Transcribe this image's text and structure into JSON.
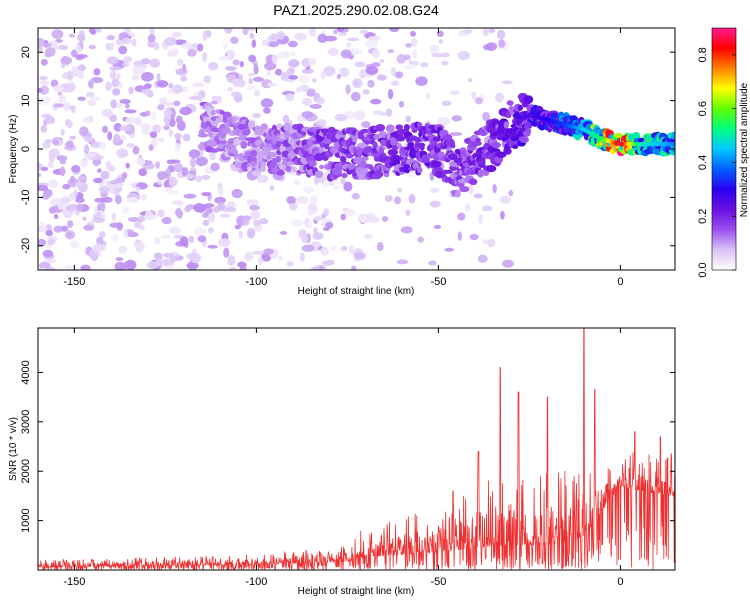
{
  "title": "PAZ1.2025.290.02.08.G24",
  "chart_data": [
    {
      "type": "heatmap",
      "name": "spectrogram",
      "xlabel": "Height of straight line (km)",
      "ylabel": "Frequency (Hz)",
      "xlim": [
        -160,
        15
      ],
      "ylim": [
        -25,
        25
      ],
      "xticks": [
        -150,
        -100,
        -50,
        0
      ],
      "yticks": [
        -20,
        -10,
        0,
        10,
        20
      ],
      "colorbar": {
        "label": "Normalized spectral amplitude",
        "range": [
          0,
          0.9
        ],
        "ticks": [
          "0.0",
          "0.2",
          "0.4",
          "0.6",
          "0.8"
        ],
        "colormap": [
          "#ffffff",
          "#d9c2f5",
          "#9a4ff0",
          "#6a10e0",
          "#2a00f0",
          "#0060ff",
          "#00c8ff",
          "#00ff80",
          "#60ff00",
          "#ffff00",
          "#ff8000",
          "#ff0000",
          "#ff1a8c"
        ]
      },
      "noise_region": {
        "x_range": [
          -160,
          -30
        ],
        "y_range": [
          -25,
          25
        ],
        "amplitude": 0.08
      },
      "signal_trace": [
        {
          "x": -115,
          "freq": 5,
          "amp": 0.12
        },
        {
          "x": -100,
          "freq": 0,
          "amp": 0.12
        },
        {
          "x": -90,
          "freq": 0,
          "amp": 0.15
        },
        {
          "x": -80,
          "freq": -1,
          "amp": 0.18
        },
        {
          "x": -70,
          "freq": -1,
          "amp": 0.17
        },
        {
          "x": -60,
          "freq": 0,
          "amp": 0.2
        },
        {
          "x": -50,
          "freq": 0,
          "amp": 0.2
        },
        {
          "x": -45,
          "freq": -5,
          "amp": 0.18
        },
        {
          "x": -35,
          "freq": 1,
          "amp": 0.2
        },
        {
          "x": -30,
          "freq": 5,
          "amp": 0.22
        },
        {
          "x": -25,
          "freq": 7,
          "amp": 0.25
        },
        {
          "x": -20,
          "freq": 6,
          "amp": 0.3
        },
        {
          "x": -15,
          "freq": 5,
          "amp": 0.35
        },
        {
          "x": -10,
          "freq": 4,
          "amp": 0.45
        },
        {
          "x": -5,
          "freq": 2,
          "amp": 0.55
        },
        {
          "x": 0,
          "freq": 1,
          "amp": 0.88
        },
        {
          "x": 5,
          "freq": 1,
          "amp": 0.5
        },
        {
          "x": 10,
          "freq": 1,
          "amp": 0.45
        },
        {
          "x": 15,
          "freq": 1,
          "amp": 0.4
        }
      ]
    },
    {
      "type": "line",
      "name": "snr",
      "xlabel": "Height of straight line (km)",
      "ylabel": "SNR (10 * v/v)",
      "xlim": [
        -160,
        15
      ],
      "ylim": [
        0,
        4900
      ],
      "xticks": [
        -150,
        -100,
        -50,
        0
      ],
      "yticks": [
        1000,
        2000,
        3000,
        4000
      ],
      "line_color": "#ee3030",
      "envelope": [
        {
          "x": -160,
          "base": 60,
          "amp": 160
        },
        {
          "x": -120,
          "base": 90,
          "amp": 180
        },
        {
          "x": -100,
          "base": 110,
          "amp": 230
        },
        {
          "x": -75,
          "base": 160,
          "amp": 320
        },
        {
          "x": -70,
          "base": 260,
          "amp": 650
        },
        {
          "x": -50,
          "base": 350,
          "amp": 900
        },
        {
          "x": -40,
          "base": 450,
          "amp": 1300
        },
        {
          "x": -30,
          "base": 500,
          "amp": 1500
        },
        {
          "x": -20,
          "base": 500,
          "amp": 1500
        },
        {
          "x": -10,
          "base": 650,
          "amp": 1500
        },
        {
          "x": -5,
          "base": 1200,
          "amp": 800
        },
        {
          "x": 0,
          "base": 1700,
          "amp": 500
        },
        {
          "x": 5,
          "base": 1600,
          "amp": 900
        },
        {
          "x": 15,
          "base": 1500,
          "amp": 900
        }
      ],
      "peaks": [
        {
          "x": -33,
          "y": 4100
        },
        {
          "x": -28,
          "y": 3600
        },
        {
          "x": -20,
          "y": 3500
        },
        {
          "x": -10,
          "y": 4900
        },
        {
          "x": -7,
          "y": 3650
        },
        {
          "x": -39,
          "y": 2400
        },
        {
          "x": -46,
          "y": 1600
        },
        {
          "x": 4,
          "y": 2800
        },
        {
          "x": 11,
          "y": 2700
        },
        {
          "x": 14,
          "y": 2350
        }
      ]
    }
  ]
}
